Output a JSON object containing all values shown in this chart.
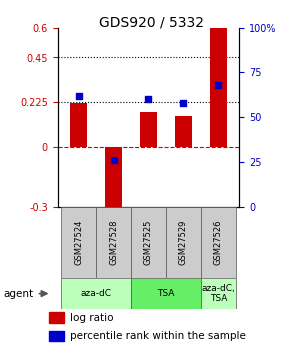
{
  "title": "GDS920 / 5332",
  "samples": [
    "GSM27524",
    "GSM27528",
    "GSM27525",
    "GSM27529",
    "GSM27526"
  ],
  "log_ratios": [
    0.22,
    -0.33,
    0.175,
    0.155,
    0.61
  ],
  "percentile_ranks": [
    62,
    26,
    60,
    58,
    68
  ],
  "ylim_left": [
    -0.3,
    0.6
  ],
  "ylim_right": [
    0,
    100
  ],
  "yticks_left": [
    -0.3,
    0,
    0.225,
    0.45,
    0.6
  ],
  "yticks_right": [
    0,
    25,
    50,
    75,
    100
  ],
  "ytick_labels_left": [
    "-0.3",
    "0",
    "0.225",
    "0.45",
    "0.6"
  ],
  "ytick_labels_right": [
    "0",
    "25",
    "50",
    "75",
    "100%"
  ],
  "hlines": [
    0.45,
    0.225
  ],
  "bar_color": "#cc0000",
  "dot_color": "#0000cc",
  "agent_groups": [
    {
      "label": "aza-dC",
      "span": [
        0,
        2
      ],
      "color": "#bbffbb"
    },
    {
      "label": "TSA",
      "span": [
        2,
        4
      ],
      "color": "#66ee66"
    },
    {
      "label": "aza-dC,\nTSA",
      "span": [
        4,
        5
      ],
      "color": "#bbffbb"
    }
  ],
  "title_fontsize": 10,
  "bar_width": 0.5
}
